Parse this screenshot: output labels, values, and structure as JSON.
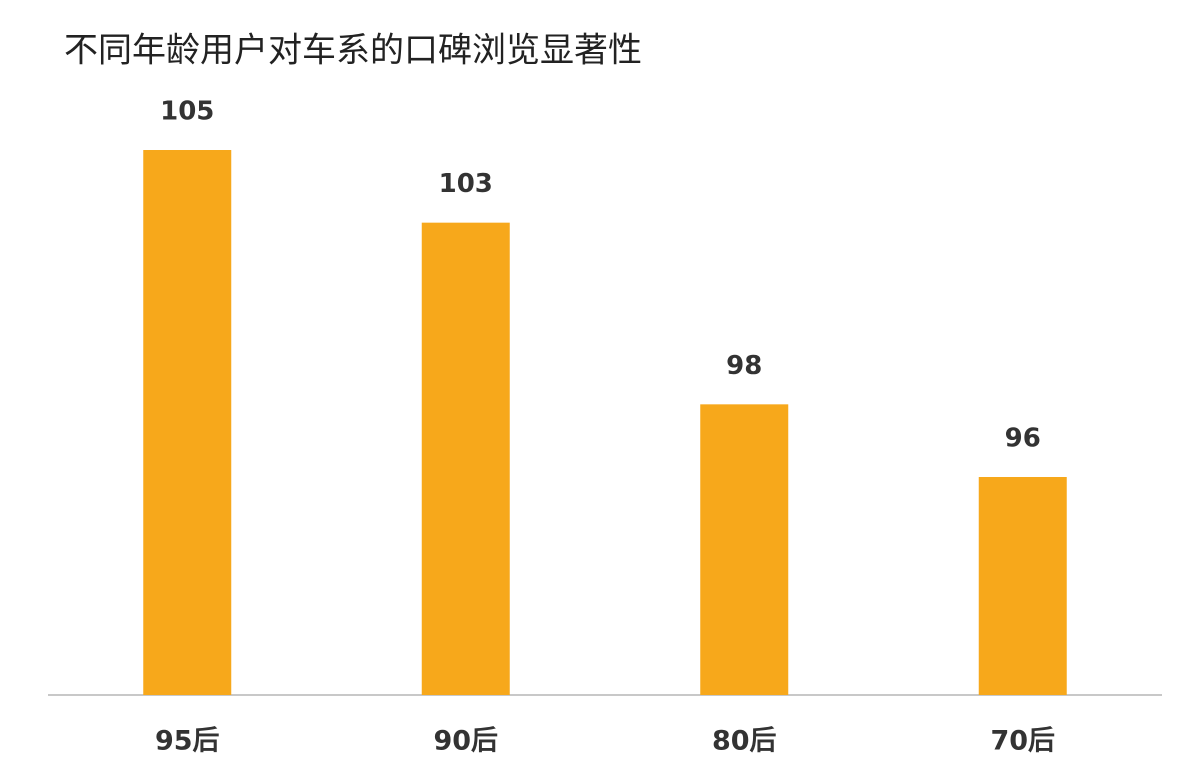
{
  "chart_data": {
    "type": "bar",
    "title": "不同年龄用户对车系的口碑浏览显著性",
    "categories": [
      "95后",
      "90后",
      "80后",
      "70后"
    ],
    "values": [
      105,
      103,
      98,
      96
    ],
    "color": "#f7a81b",
    "ylim": [
      90,
      105
    ]
  }
}
